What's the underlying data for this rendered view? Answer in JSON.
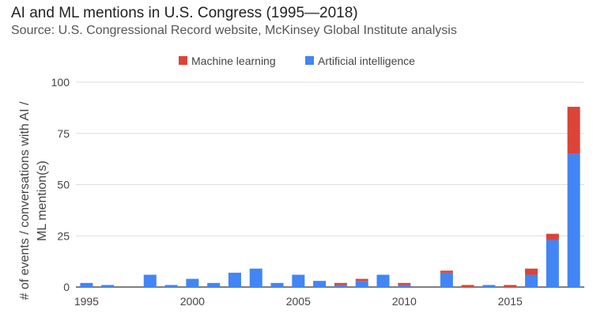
{
  "chart_data": {
    "type": "bar",
    "stacked": true,
    "title": "AI and ML mentions in U.S. Congress (1995—2018)",
    "subtitle": "Source: U.S. Congressional Record website, McKinsey Global Institute analysis",
    "ylabel_lines": [
      "# of events / conversations with AI /",
      "ML mention(s)"
    ],
    "xlabel": "",
    "ylim": [
      0,
      100
    ],
    "yticks": [
      0,
      25,
      50,
      75,
      100
    ],
    "xticks": [
      1995,
      2000,
      2005,
      2010,
      2015
    ],
    "categories": [
      1995,
      1996,
      1997,
      1998,
      1999,
      2000,
      2001,
      2002,
      2003,
      2004,
      2005,
      2006,
      2007,
      2008,
      2009,
      2010,
      2011,
      2012,
      2013,
      2014,
      2015,
      2016,
      2017,
      2018
    ],
    "series": [
      {
        "name": "Artificial intelligence",
        "color": "#4285f4",
        "values": [
          2,
          1,
          0,
          6,
          1,
          4,
          2,
          7,
          9,
          2,
          6,
          3,
          1,
          3,
          6,
          1,
          0,
          7,
          0,
          1,
          0,
          6,
          23,
          65
        ]
      },
      {
        "name": "Machine learning",
        "color": "#db4437",
        "values": [
          0,
          0,
          0,
          0,
          0,
          0,
          0,
          0,
          0,
          0,
          0,
          0,
          1,
          1,
          0,
          1,
          0,
          1,
          1,
          0,
          1,
          3,
          3,
          23
        ]
      }
    ],
    "legend": [
      {
        "name": "Machine learning",
        "color": "#db4437"
      },
      {
        "name": "Artificial intelligence",
        "color": "#4285f4"
      }
    ],
    "grid": true
  }
}
